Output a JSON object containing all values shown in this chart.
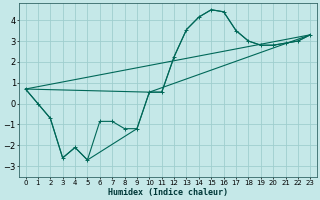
{
  "xlabel": "Humidex (Indice chaleur)",
  "background_color": "#c5e8e8",
  "grid_color": "#9fcece",
  "line_color": "#006858",
  "xlim": [
    -0.5,
    23.5
  ],
  "ylim": [
    -3.5,
    4.8
  ],
  "xticks": [
    0,
    1,
    2,
    3,
    4,
    5,
    6,
    7,
    8,
    9,
    10,
    11,
    12,
    13,
    14,
    15,
    16,
    17,
    18,
    19,
    20,
    21,
    22,
    23
  ],
  "yticks": [
    -3,
    -2,
    -1,
    0,
    1,
    2,
    3,
    4
  ],
  "line1_x": [
    0,
    1,
    2,
    3,
    4,
    5,
    6,
    7,
    8,
    9,
    10,
    11,
    12,
    13,
    14,
    15,
    16,
    17,
    18,
    19,
    20,
    21,
    22,
    23
  ],
  "line1_y": [
    0.7,
    0.0,
    -0.7,
    -2.6,
    -2.1,
    -2.7,
    -0.85,
    -0.85,
    -1.2,
    -1.2,
    0.55,
    0.55,
    2.25,
    3.55,
    4.15,
    4.5,
    4.4,
    3.5,
    3.0,
    2.8,
    2.8,
    2.9,
    3.0,
    3.3
  ],
  "line2_x": [
    0,
    1,
    2,
    3,
    4,
    5,
    9,
    10,
    11,
    12,
    13,
    14,
    15,
    16,
    17,
    18,
    19,
    20,
    21,
    22,
    23
  ],
  "line2_y": [
    0.7,
    0.0,
    -0.7,
    -2.6,
    -2.1,
    -2.7,
    -1.2,
    0.55,
    0.55,
    2.25,
    3.55,
    4.15,
    4.5,
    4.4,
    3.5,
    3.0,
    2.8,
    2.8,
    2.9,
    3.0,
    3.3
  ],
  "line3_x": [
    0,
    10,
    23
  ],
  "line3_y": [
    0.7,
    0.55,
    3.3
  ],
  "line4_x": [
    0,
    23
  ],
  "line4_y": [
    0.7,
    3.3
  ]
}
